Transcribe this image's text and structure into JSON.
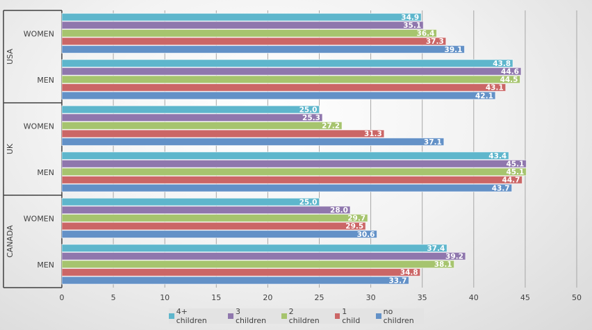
{
  "chart_data": {
    "type": "bar",
    "orientation": "horizontal",
    "groups": [
      {
        "country": "USA",
        "categories": [
          "WOMEN",
          "MEN"
        ]
      },
      {
        "country": "UK",
        "categories": [
          "WOMEN",
          "MEN"
        ]
      },
      {
        "country": "CANADA",
        "categories": [
          "WOMEN",
          "MEN"
        ]
      }
    ],
    "series": [
      {
        "name": "4+ children",
        "color": "#5eb6cc",
        "values": [
          34.9,
          43.8,
          25.0,
          43.4,
          25.0,
          37.4
        ]
      },
      {
        "name": "3 children",
        "color": "#8f77ad",
        "values": [
          35.1,
          44.6,
          25.3,
          45.1,
          28.0,
          39.2
        ]
      },
      {
        "name": "2 children",
        "color": "#a6c46e",
        "values": [
          36.4,
          44.5,
          27.2,
          45.1,
          29.7,
          38.1
        ]
      },
      {
        "name": "1 child",
        "color": "#cb6666",
        "values": [
          37.3,
          43.1,
          31.3,
          44.7,
          29.5,
          34.8
        ]
      },
      {
        "name": "no children",
        "color": "#6391c7",
        "values": [
          39.1,
          42.1,
          37.1,
          43.7,
          30.6,
          33.7
        ]
      }
    ],
    "xlim": [
      0,
      50
    ],
    "xticks": [
      "0",
      "5",
      "10",
      "15",
      "20",
      "25",
      "30",
      "35",
      "40",
      "45",
      "50"
    ],
    "grid": true,
    "legend": "bottom",
    "data_labels": true
  }
}
